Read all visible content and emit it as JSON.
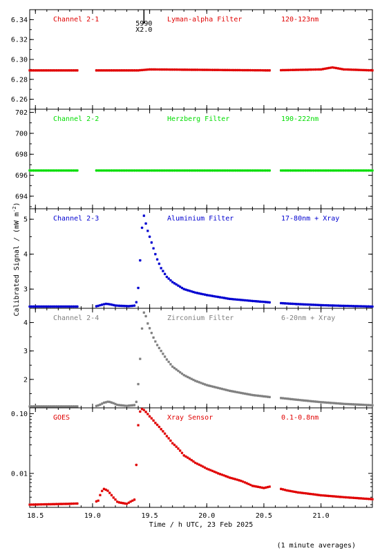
{
  "chart_data": {
    "type": "scatter",
    "xlabel": "Time / h UTC, 23 Feb 2025",
    "ylabel": "Calibrated Signal / (mW m",
    "ylabel_superscript": "-2",
    "ylabel_suffix": ")",
    "footnote": "(1 minute averages)",
    "xlim": [
      18.45,
      21.45
    ],
    "xticks": [
      18.5,
      19.0,
      19.5,
      20.0,
      20.5,
      21.0
    ],
    "xtick_labels": [
      "18.5",
      "19.0",
      "19.5",
      "20.0",
      "20.5",
      "21.0"
    ],
    "gaps": [
      [
        18.88,
        19.02
      ],
      [
        20.55,
        20.64
      ]
    ],
    "flare_marker": {
      "x": 19.45,
      "label_top": "5990",
      "label_bottom": "X2.0"
    },
    "panels": [
      {
        "channel": "Channel 2-1",
        "filter": "Lyman-alpha Filter",
        "band": "120-123nm",
        "color": "#e00000",
        "scale": "linear",
        "ylim": [
          6.25,
          6.35
        ],
        "yticks": [
          6.26,
          6.28,
          6.3,
          6.32,
          6.34
        ],
        "ytick_labels": [
          "6.26",
          "6.28",
          "6.30",
          "6.32",
          "6.34"
        ],
        "points": [
          [
            18.45,
            6.289
          ],
          [
            19.4,
            6.289
          ],
          [
            19.5,
            6.29
          ],
          [
            20.55,
            6.289
          ],
          [
            21.0,
            6.29
          ],
          [
            21.05,
            6.291
          ],
          [
            21.1,
            6.292
          ],
          [
            21.15,
            6.291
          ],
          [
            21.2,
            6.29
          ],
          [
            21.45,
            6.289
          ]
        ]
      },
      {
        "channel": "Channel 2-2",
        "filter": "Herzberg Filter",
        "band": "190-222nm",
        "color": "#00dd00",
        "scale": "linear",
        "ylim": [
          692.8,
          702.3
        ],
        "yticks": [
          694,
          696,
          698,
          700,
          702
        ],
        "ytick_labels": [
          "694",
          "696",
          "698",
          "700",
          "702"
        ],
        "points": [
          [
            18.45,
            696.45
          ],
          [
            21.45,
            696.45
          ]
        ]
      },
      {
        "channel": "Channel 2-3",
        "filter": "Aluminium Filter",
        "band": "17-80nm + Xray",
        "color": "#0000d0",
        "scale": "linear",
        "ylim": [
          2.45,
          5.3
        ],
        "yticks": [
          3,
          4,
          5
        ],
        "ytick_labels": [
          "3",
          "4",
          "5"
        ],
        "points": [
          [
            18.45,
            2.5
          ],
          [
            19.02,
            2.5
          ],
          [
            19.05,
            2.52
          ],
          [
            19.08,
            2.55
          ],
          [
            19.12,
            2.58
          ],
          [
            19.16,
            2.56
          ],
          [
            19.2,
            2.53
          ],
          [
            19.25,
            2.52
          ],
          [
            19.32,
            2.51
          ],
          [
            19.375,
            2.53
          ],
          [
            19.39,
            2.7
          ],
          [
            19.405,
            3.2
          ],
          [
            19.42,
            4.0
          ],
          [
            19.435,
            4.85
          ],
          [
            19.45,
            5.1
          ],
          [
            19.465,
            4.9
          ],
          [
            19.48,
            4.7
          ],
          [
            19.5,
            4.5
          ],
          [
            19.53,
            4.2
          ],
          [
            19.56,
            3.9
          ],
          [
            19.6,
            3.6
          ],
          [
            19.65,
            3.35
          ],
          [
            19.7,
            3.2
          ],
          [
            19.8,
            3.0
          ],
          [
            19.9,
            2.9
          ],
          [
            20.0,
            2.83
          ],
          [
            20.2,
            2.72
          ],
          [
            20.4,
            2.66
          ],
          [
            20.55,
            2.62
          ],
          [
            20.64,
            2.6
          ],
          [
            20.8,
            2.57
          ],
          [
            21.0,
            2.54
          ],
          [
            21.2,
            2.52
          ],
          [
            21.45,
            2.5
          ]
        ]
      },
      {
        "channel": "Channel 2-4",
        "filter": "Zirconium Filter",
        "band": "6-20nm + Xray",
        "color": "#808080",
        "scale": "linear",
        "ylim": [
          1.0,
          4.5
        ],
        "yticks": [
          2,
          3,
          4
        ],
        "ytick_labels": [
          "2",
          "3",
          "4"
        ],
        "points": [
          [
            18.45,
            1.05
          ],
          [
            19.02,
            1.05
          ],
          [
            19.06,
            1.1
          ],
          [
            19.1,
            1.18
          ],
          [
            19.14,
            1.22
          ],
          [
            19.18,
            1.17
          ],
          [
            19.22,
            1.1
          ],
          [
            19.3,
            1.07
          ],
          [
            19.375,
            1.1
          ],
          [
            19.39,
            1.3
          ],
          [
            19.405,
            2.1
          ],
          [
            19.42,
            2.9
          ],
          [
            19.435,
            3.9
          ],
          [
            19.45,
            4.35
          ],
          [
            19.465,
            4.25
          ],
          [
            19.48,
            4.0
          ],
          [
            19.5,
            3.8
          ],
          [
            19.53,
            3.5
          ],
          [
            19.56,
            3.25
          ],
          [
            19.6,
            3.0
          ],
          [
            19.65,
            2.7
          ],
          [
            19.7,
            2.45
          ],
          [
            19.8,
            2.15
          ],
          [
            19.9,
            1.95
          ],
          [
            20.0,
            1.8
          ],
          [
            20.2,
            1.6
          ],
          [
            20.4,
            1.45
          ],
          [
            20.55,
            1.38
          ],
          [
            20.64,
            1.35
          ],
          [
            20.8,
            1.28
          ],
          [
            21.0,
            1.2
          ],
          [
            21.2,
            1.14
          ],
          [
            21.45,
            1.09
          ]
        ]
      },
      {
        "channel": "GOES",
        "filter": "Xray Sensor",
        "band": "0.1-0.8nm",
        "color": "#e00000",
        "scale": "log",
        "ylim": [
          0.0027,
          0.125
        ],
        "yticks": [
          0.01,
          0.1
        ],
        "ytick_labels": [
          "0.01",
          "0.10"
        ],
        "points": [
          [
            18.45,
            0.003
          ],
          [
            18.8,
            0.0031
          ],
          [
            19.0,
            0.0032
          ],
          [
            19.05,
            0.0035
          ],
          [
            19.08,
            0.005
          ],
          [
            19.1,
            0.0055
          ],
          [
            19.13,
            0.0052
          ],
          [
            19.18,
            0.004
          ],
          [
            19.22,
            0.0033
          ],
          [
            19.3,
            0.0031
          ],
          [
            19.375,
            0.0037
          ],
          [
            19.39,
            0.022
          ],
          [
            19.405,
            0.085
          ],
          [
            19.42,
            0.115
          ],
          [
            19.435,
            0.12
          ],
          [
            19.45,
            0.115
          ],
          [
            19.47,
            0.105
          ],
          [
            19.5,
            0.09
          ],
          [
            19.55,
            0.07
          ],
          [
            19.6,
            0.055
          ],
          [
            19.65,
            0.042
          ],
          [
            19.7,
            0.032
          ],
          [
            19.8,
            0.02
          ],
          [
            19.9,
            0.015
          ],
          [
            20.0,
            0.012
          ],
          [
            20.1,
            0.01
          ],
          [
            20.2,
            0.0085
          ],
          [
            20.25,
            0.008
          ],
          [
            20.3,
            0.0075
          ],
          [
            20.4,
            0.0062
          ],
          [
            20.5,
            0.0057
          ],
          [
            20.55,
            0.006
          ],
          [
            20.6,
            0.0058
          ],
          [
            20.7,
            0.0052
          ],
          [
            20.8,
            0.0048
          ],
          [
            21.0,
            0.0043
          ],
          [
            21.2,
            0.004
          ],
          [
            21.45,
            0.0037
          ]
        ]
      }
    ]
  }
}
